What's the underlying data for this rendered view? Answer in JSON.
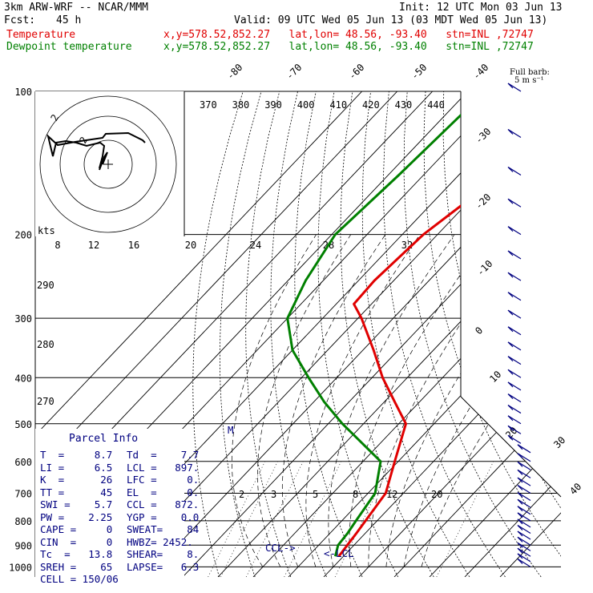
{
  "header": {
    "model": "3km ARW-WRF -- NCAR/MMM",
    "init": "Init: 12 UTC Mon 03 Jun 13",
    "fcst_label": "Fcst:",
    "fcst_hours": "45 h",
    "valid": "Valid: 09 UTC Wed 05 Jun 13 (03 MDT Wed 05 Jun 13)",
    "temp_name": "Temperature",
    "temp_info": "x,y=578.52,852.27   lat,lon= 48.56, -93.40   stn=INL ,72747",
    "dew_name": "Dewpoint temperature",
    "dew_info": "x,y=578.52,852.27   lat,lon= 48.56, -93.40   stn=INL ,72747"
  },
  "colors": {
    "temperature": "#e00000",
    "dewpoint": "#008000",
    "indices": "#000080",
    "barbs": "#000080"
  },
  "chart_data": {
    "type": "line",
    "pressure_levels": [
      100,
      200,
      300,
      400,
      500,
      600,
      700,
      800,
      900,
      1000
    ],
    "pressure_labels": [
      "100",
      "200",
      "300",
      "400",
      "500",
      "600",
      "700",
      "800",
      "900",
      "1000"
    ],
    "isotherms_top": [
      "-80",
      "-70",
      "-60",
      "-50",
      "-40"
    ],
    "isotherms_right": [
      "-30",
      "-20",
      "-10",
      "0",
      "10",
      "20",
      "30",
      "40"
    ],
    "isentrope_labels": [
      "370",
      "380",
      "390",
      "400",
      "410",
      "420",
      "430",
      "440"
    ],
    "dry_adiabat_labels": [
      "290",
      "280",
      "270"
    ],
    "mixing_ratio_labels": [
      "2",
      "3",
      "5",
      "8",
      "12",
      "20"
    ],
    "hodograph": {
      "units": "kts",
      "ring_labels": [
        "8",
        "12",
        "16",
        "20",
        "24",
        "28",
        "32"
      ],
      "ring_label_small": [
        "2",
        "2"
      ]
    },
    "series": [
      {
        "name": "Temperature",
        "x": [
          -42,
          -48,
          -54,
          -55.5,
          -55,
          -49,
          -37,
          -27,
          -17,
          -8,
          -1,
          5,
          7.5,
          8.7
        ],
        "y": [
          100,
          150,
          200,
          250,
          280,
          300,
          350,
          400,
          450,
          500,
          600,
          700,
          850,
          950
        ]
      },
      {
        "name": "Dewpoint",
        "x": [
          -75,
          -77,
          -79,
          -75,
          -70,
          -60,
          -48,
          -37,
          -26,
          -15,
          -5,
          2,
          4,
          5,
          5.5,
          7.7
        ],
        "y": [
          100,
          150,
          200,
          250,
          300,
          350,
          400,
          450,
          500,
          550,
          600,
          700,
          800,
          850,
          900,
          950
        ]
      }
    ],
    "annotations": {
      "ccl": "CCL->",
      "lcl": "<-LCL",
      "m_marker": "M",
      "full_barb": "Full barb:",
      "full_barb_value": "5 m s⁻¹"
    }
  },
  "parcel": {
    "title": "Parcel Info",
    "rows": [
      [
        "T  =     8.7",
        "Td  =    7.7"
      ],
      [
        "LI =     6.5",
        "LCL =   897."
      ],
      [
        "K  =      26",
        "LFC =     0."
      ],
      [
        "TT =      45",
        "EL  =     0."
      ],
      [
        "SWI =    5.7",
        "CCL =   872."
      ],
      [
        "PW =    2.25",
        "YGP =    0.0"
      ],
      [
        "CAPE =     0",
        "SWEAT=    84"
      ],
      [
        "CIN  =     0",
        "HWBZ= 2452."
      ],
      [
        "Tc  =   13.8",
        "SHEAR=    8."
      ],
      [
        "SREH =    65",
        "LAPSE=   6.3"
      ],
      [
        "CELL = 150/06",
        ""
      ]
    ]
  }
}
